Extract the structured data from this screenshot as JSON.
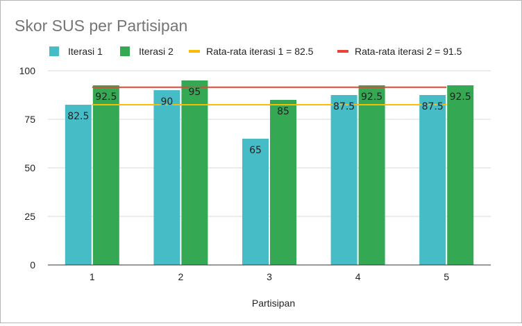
{
  "chart_data": {
    "type": "bar",
    "title": "Skor SUS per Partisipan",
    "xlabel": "Partisipan",
    "ylabel": "",
    "categories": [
      "1",
      "2",
      "3",
      "4",
      "5"
    ],
    "series": [
      {
        "name": "Iterasi 1",
        "color": "#46bdc6",
        "values": [
          82.5,
          90,
          65,
          87.5,
          87.5
        ],
        "labels": [
          "82.5",
          "90",
          "65",
          "87.5",
          "87.5"
        ]
      },
      {
        "name": "Iterasi 2",
        "color": "#34a853",
        "values": [
          92.5,
          95,
          85,
          92.5,
          92.5
        ],
        "labels": [
          "92.5",
          "95",
          "85",
          "92.5",
          "92.5"
        ]
      }
    ],
    "reference_lines": [
      {
        "name": "Rata-rata iterasi 1 = 82.5",
        "value": 82.5,
        "color": "#fbbc04"
      },
      {
        "name": "Rata-rata iterasi 2 = 91.5",
        "value": 91.5,
        "color": "#ea4335"
      }
    ],
    "ylim": [
      0,
      100
    ],
    "yticks": [
      0,
      25,
      50,
      75,
      100
    ],
    "ytick_labels": [
      "0",
      "25",
      "50",
      "75",
      "100"
    ],
    "grid": true,
    "legend_position": "top"
  }
}
